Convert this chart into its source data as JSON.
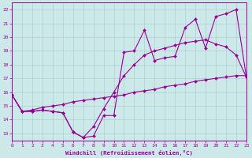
{
  "xlabel": "Windchill (Refroidissement éolien,°C)",
  "xlim": [
    0,
    23
  ],
  "ylim": [
    12.5,
    22.5
  ],
  "xticks": [
    0,
    1,
    2,
    3,
    4,
    5,
    6,
    7,
    8,
    9,
    10,
    11,
    12,
    13,
    14,
    15,
    16,
    17,
    18,
    19,
    20,
    21,
    22,
    23
  ],
  "yticks": [
    13,
    14,
    15,
    16,
    17,
    18,
    19,
    20,
    21,
    22
  ],
  "bg_color": "#cce8e8",
  "line_color": "#990099",
  "grid_color": "#aad0d0",
  "curve1_x": [
    0,
    1,
    2,
    3,
    4,
    5,
    6,
    7,
    8,
    9,
    10,
    11,
    12,
    13,
    14,
    15,
    16,
    17,
    18,
    19,
    20,
    21,
    22,
    23
  ],
  "curve1_y": [
    15.8,
    14.6,
    14.6,
    14.7,
    14.6,
    14.5,
    13.1,
    12.7,
    12.8,
    14.3,
    14.3,
    18.9,
    19.0,
    20.5,
    18.3,
    18.5,
    18.6,
    20.7,
    21.3,
    19.2,
    21.5,
    21.7,
    22.0,
    17.1
  ],
  "curve2_x": [
    0,
    1,
    2,
    3,
    4,
    5,
    6,
    7,
    8,
    9,
    10,
    11,
    12,
    13,
    14,
    15,
    16,
    17,
    18,
    19,
    20,
    21,
    22,
    23
  ],
  "curve2_y": [
    15.8,
    14.6,
    14.6,
    14.7,
    14.6,
    14.5,
    13.1,
    12.7,
    13.5,
    14.8,
    16.0,
    17.2,
    18.0,
    18.7,
    19.0,
    19.2,
    19.4,
    19.6,
    19.7,
    19.8,
    19.5,
    19.3,
    18.7,
    17.1
  ],
  "curve3_x": [
    0,
    1,
    2,
    3,
    4,
    5,
    6,
    7,
    8,
    9,
    10,
    11,
    12,
    13,
    14,
    15,
    16,
    17,
    18,
    19,
    20,
    21,
    22,
    23
  ],
  "curve3_y": [
    15.8,
    14.6,
    14.7,
    14.9,
    15.0,
    15.1,
    15.3,
    15.4,
    15.5,
    15.6,
    15.7,
    15.8,
    16.0,
    16.1,
    16.2,
    16.4,
    16.5,
    16.6,
    16.8,
    16.9,
    17.0,
    17.1,
    17.2,
    17.2
  ]
}
